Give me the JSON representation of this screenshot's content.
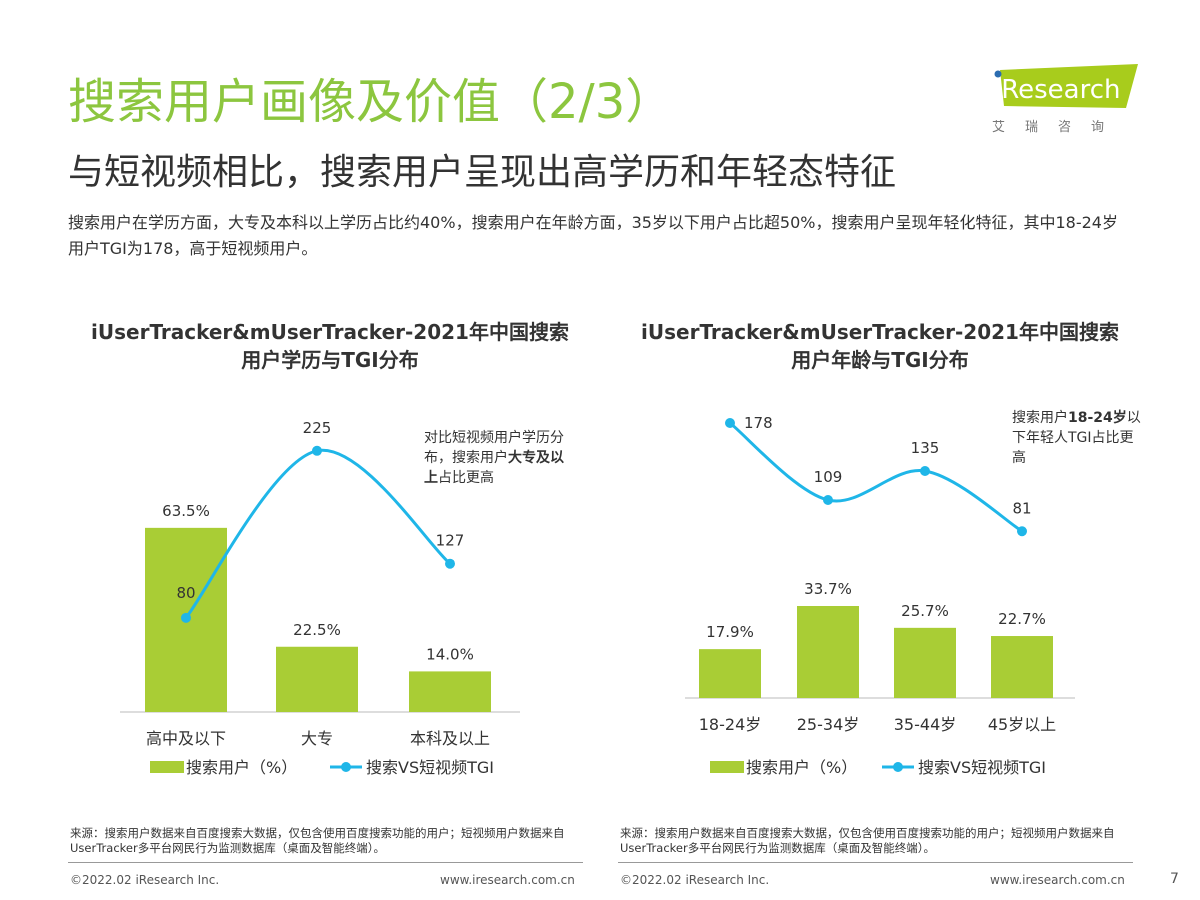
{
  "header": {
    "title": "搜索用户画像及价值（2/3）",
    "subtitle": "与短视频相比，搜索用户呈现出高学历和年轻态特征",
    "description": "搜索用户在学历方面，大专及本科以上学历占比约40%，搜索用户在年龄方面，35岁以下用户占比超50%，搜索用户呈现年轻化特征，其中18-24岁用户TGI为178，高于短视频用户。"
  },
  "logo": {
    "text": "iResearch",
    "sub": "艾瑞咨询",
    "color": "#a8cc1c"
  },
  "colors": {
    "title": "#8cc63f",
    "bar": "#a9cd35",
    "line": "#1fb6e8"
  },
  "chart_data": [
    {
      "type": "bar",
      "title_line1": "iUserTracker&mUserTracker-2021年中国搜索",
      "title_line2": "用户学历与TGI分布",
      "categories": [
        "高中及以下",
        "大专",
        "本科及以上"
      ],
      "series": [
        {
          "name": "搜索用户（%）",
          "type": "bar",
          "values": [
            63.5,
            22.5,
            14.0
          ],
          "labels": [
            "63.5%",
            "22.5%",
            "14.0%"
          ]
        },
        {
          "name": "搜索VS短视频TGI",
          "type": "line",
          "values": [
            80,
            225,
            127
          ]
        }
      ],
      "annotation": {
        "pre": "对比短视频用户学历分布，搜索用户",
        "bold": "大专及以上",
        "post": "占比更高"
      },
      "source": "来源：搜索用户数据来自百度搜索大数据，仅包含使用百度搜索功能的用户；短视频用户数据来自UserTracker多平台网民行为监测数据库（桌面及智能终端）。"
    },
    {
      "type": "bar",
      "title_line1": "iUserTracker&mUserTracker-2021年中国搜索",
      "title_line2": "用户年龄与TGI分布",
      "categories": [
        "18-24岁",
        "25-34岁",
        "35-44岁",
        "45岁以上"
      ],
      "series": [
        {
          "name": "搜索用户（%）",
          "type": "bar",
          "values": [
            17.9,
            33.7,
            25.7,
            22.7
          ],
          "labels": [
            "17.9%",
            "33.7%",
            "25.7%",
            "22.7%"
          ]
        },
        {
          "name": "搜索VS短视频TGI",
          "type": "line",
          "values": [
            178,
            109,
            135,
            81
          ]
        }
      ],
      "annotation": {
        "pre": "搜索用户",
        "bold": "18-24岁",
        "post": "以下年轻人TGI占比更高"
      },
      "source": "来源：搜索用户数据来自百度搜索大数据，仅包含使用百度搜索功能的用户；短视频用户数据来自UserTracker多平台网民行为监测数据库（桌面及智能终端）。"
    }
  ],
  "footer": {
    "copyright": "©2022.02 iResearch Inc.",
    "url": "www.iresearch.com.cn",
    "page": "7"
  }
}
